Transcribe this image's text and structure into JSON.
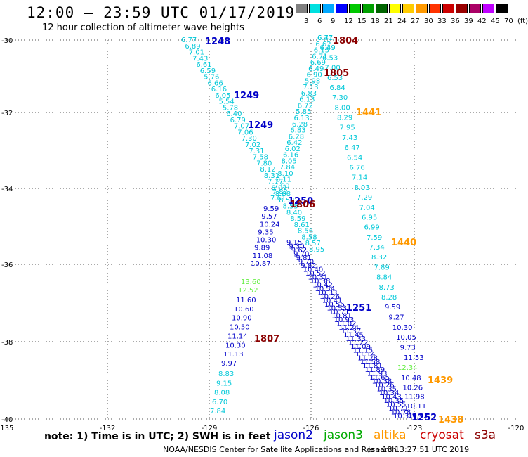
{
  "header": {
    "title": "12:00 – 23:59 UTC 01/17/2019",
    "subtitle": "12 hour collection of altimeter wave heights"
  },
  "color_scale": {
    "labels": [
      "3",
      "6",
      "9",
      "12",
      "15",
      "18",
      "21",
      "24",
      "27",
      "30",
      "33",
      "36",
      "39",
      "42",
      "45",
      "70",
      "(ft)"
    ],
    "colors": [
      "#808080",
      "#00e0e0",
      "#00a8ff",
      "#0000ff",
      "#00c800",
      "#00a000",
      "#006400",
      "#ffff00",
      "#ffcc00",
      "#ff9900",
      "#ff3300",
      "#cc0000",
      "#990000",
      "#aa0066",
      "#c000ff",
      "#000000"
    ]
  },
  "map": {
    "lat_labels": [
      "-30",
      "-32",
      "-34",
      "-36",
      "-38",
      "-40"
    ],
    "lon_labels": [
      "-135",
      "-132",
      "-129",
      "-126",
      "-123",
      "-120"
    ]
  },
  "tracks": [
    {
      "id": "t1",
      "color": "#00c8d8",
      "values": [
        "6.77",
        "6.89",
        "7.01",
        "7.43",
        "6.61",
        "6.59",
        "5.76",
        "6.66",
        "6.16",
        "6.05",
        "5.54",
        "5.78",
        "6.40",
        "6.79",
        "7.07",
        "7.06",
        "7.30",
        "7.02",
        "7.31",
        "7.58",
        "7.80",
        "8.12",
        "8.31",
        "7.77",
        "8.07",
        "8.68",
        "8.52",
        "8.55",
        "8.40",
        "8.59",
        "8.61",
        "8.56",
        "8.58",
        "8.57",
        "8.95"
      ]
    },
    {
      "id": "t2",
      "color": "#0000c8",
      "values": [
        "9.15",
        "9.30",
        "9.62",
        "9.70",
        "9.81",
        "9.70",
        "9.82",
        "10.40",
        "10.52",
        "10.31",
        "10.38",
        "10.42",
        "10.54",
        "10.33",
        "10.26",
        "10.41",
        "10.56",
        "10.53",
        "10.71",
        "10.81",
        "10.93",
        "11.02",
        "11.24",
        "11.37",
        "11.45",
        "11.33",
        "11.22",
        "11.09",
        "11.15",
        "11.14",
        "11.28",
        "11.58",
        "11.81",
        "11.89",
        "11.93",
        "11.65",
        "10.38",
        "10.26",
        "10.35",
        "10.34",
        "10.43",
        "10.35",
        "10.55",
        "10.71",
        "10.78",
        "10.31"
      ]
    },
    {
      "id": "t3",
      "color": "#00c8d8",
      "values": [
        "6.47",
        "6.62",
        "6.15",
        "6.71",
        "6.69",
        "6.49",
        "6.90",
        "5.98",
        "7.13",
        "6.83",
        "6.13",
        "6.72",
        "5.85",
        "6.13",
        "6.28",
        "6.83",
        "6.28",
        "6.42",
        "6.02",
        "6.16",
        "8.05",
        "7.84",
        "8.10",
        "8.11",
        "7.90",
        "7.82",
        "7.61"
      ]
    },
    {
      "id": "t3b",
      "color": "#0000c8",
      "values": [
        "9.59",
        "9.57",
        "10.24",
        "9.35",
        "10.30",
        "9.89",
        "11.08",
        "10.87"
      ]
    },
    {
      "id": "t3c",
      "color": "#66ee44",
      "values": [
        "13.60",
        "12.52"
      ]
    },
    {
      "id": "t3d",
      "color": "#0000c8",
      "values": [
        "11.60",
        "10.60",
        "10.90",
        "10.50",
        "11.14",
        "10.30",
        "11.13",
        "9.97"
      ]
    },
    {
      "id": "t3e",
      "color": "#00c8d8",
      "values": [
        "8.83",
        "9.15",
        "8.08",
        "6.70",
        "7.84"
      ]
    },
    {
      "id": "t4",
      "color": "#00c8d8",
      "values": [
        "6.71",
        "6.49",
        "6.53",
        "7.00",
        "6.53",
        "6.84",
        "7.30",
        "8.00",
        "8.29",
        "7.95",
        "7.43",
        "6.47",
        "6.54",
        "6.76",
        "7.14",
        "8.03",
        "7.29",
        "7.04",
        "6.95",
        "6.99",
        "7.59",
        "7.34",
        "8.32",
        "7.89",
        "8.84",
        "8.73",
        "8.28"
      ]
    },
    {
      "id": "t4b",
      "color": "#0000c8",
      "values": [
        "9.59",
        "9.27",
        "10.30",
        "10.05",
        "9.73",
        "11.53"
      ]
    },
    {
      "id": "t4c",
      "color": "#66ee44",
      "values": [
        "12.34"
      ]
    },
    {
      "id": "t4d",
      "color": "#0000c8",
      "values": [
        "10.48",
        "10.26",
        "11.98",
        "10.11",
        "10.43"
      ]
    }
  ],
  "time_labels": [
    {
      "text": "1248",
      "color": "#0000c8"
    },
    {
      "text": "1249",
      "color": "#0000c8"
    },
    {
      "text": "1249",
      "color": "#0000c8"
    },
    {
      "text": "1804",
      "color": "#8b0000"
    },
    {
      "text": "1805",
      "color": "#8b0000"
    },
    {
      "text": "1441",
      "color": "#ff9900"
    },
    {
      "text": "1250",
      "color": "#0000c8"
    },
    {
      "text": "1806",
      "color": "#8b0000"
    },
    {
      "text": "1440",
      "color": "#ff9900"
    },
    {
      "text": "1251",
      "color": "#0000c8"
    },
    {
      "text": "1807",
      "color": "#8b0000"
    },
    {
      "text": "1439",
      "color": "#ff9900"
    },
    {
      "text": "1252",
      "color": "#0000c8"
    },
    {
      "text": "1438",
      "color": "#ff9900"
    }
  ],
  "legend": {
    "jason2": "jason2",
    "jason3": "jason3",
    "altika": "altika",
    "cryosat": "cryosat",
    "s3a": "s3a",
    "colors": {
      "jason2": "#0000c8",
      "jason3": "#00aa00",
      "altika": "#ff9900",
      "cryosat": "#cc0000",
      "s3a": "#8b0000"
    }
  },
  "footer": {
    "note": "note: 1) Time is in UTC; 2) SWH is in feet",
    "credit": "NOAA/NESDIS Center for Satellite Applications and Research",
    "timestamp": "Jan 18 13:27:51 UTC 2019"
  }
}
